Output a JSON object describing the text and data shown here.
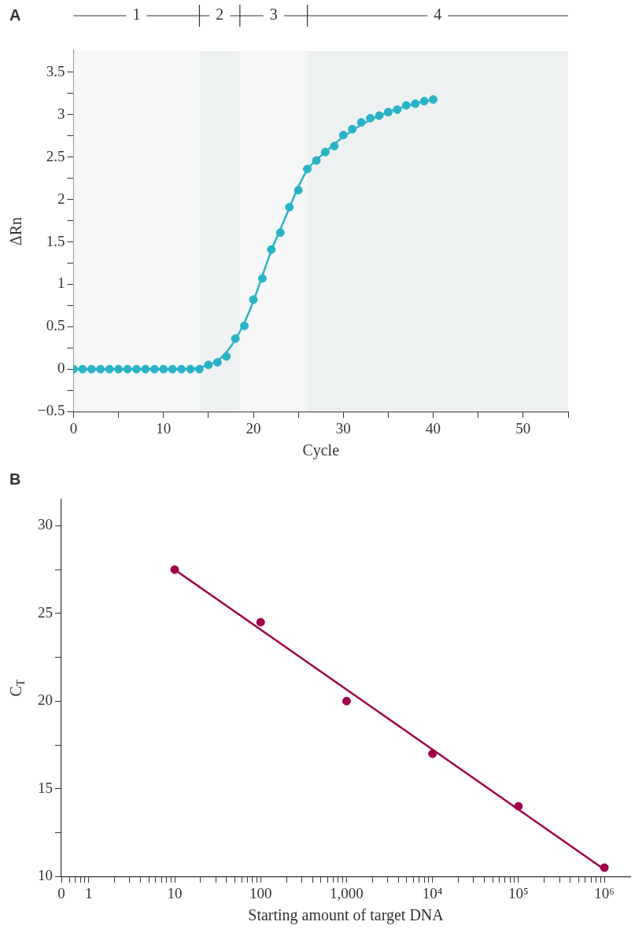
{
  "chart_data": [
    {
      "type": "scatter",
      "title": "A",
      "xlabel": "Cycle",
      "ylabel": "ΔRn",
      "xlim": [
        0,
        55
      ],
      "ylim": [
        -0.5,
        3.75
      ],
      "xticks": [
        0,
        {
          "value": 5,
          "label": null
        },
        10,
        {
          "value": 15,
          "label": null
        },
        20,
        {
          "value": 25,
          "label": null
        },
        30,
        {
          "value": 35,
          "label": null
        },
        40,
        {
          "value": 45,
          "label": null
        },
        50,
        {
          "value": 55,
          "label": null
        }
      ],
      "yticks": [
        {
          "value": -0.5,
          "label": "−0.5"
        },
        {
          "value": -0.25,
          "label": null
        },
        0,
        {
          "value": 0.25,
          "label": null
        },
        0.5,
        {
          "value": 0.75,
          "label": null
        },
        1,
        {
          "value": 1.25,
          "label": null
        },
        1.5,
        {
          "value": 1.75,
          "label": null
        },
        2,
        {
          "value": 2.25,
          "label": null
        },
        2.5,
        {
          "value": 2.75,
          "label": null
        },
        3,
        {
          "value": 3.25,
          "label": null
        },
        3.5
      ],
      "grid": false,
      "legend": false,
      "bands": [
        {
          "axis": "x",
          "from": 0,
          "to": 14,
          "label": "1"
        },
        {
          "axis": "x",
          "from": 14,
          "to": 18.5,
          "label": "2"
        },
        {
          "axis": "x",
          "from": 18.5,
          "to": 26,
          "label": "3"
        },
        {
          "axis": "x",
          "from": 26,
          "to": 55,
          "label": "4"
        }
      ],
      "series": [
        {
          "type": "line",
          "color": "#2ab3c6",
          "line_style": "solid",
          "marker": "none",
          "x": [
            0,
            4,
            8,
            12,
            14,
            16,
            17,
            18,
            19,
            20,
            21,
            22,
            23,
            24,
            25,
            26,
            28,
            30,
            32,
            34,
            36,
            38,
            40
          ],
          "values": [
            0,
            0,
            0,
            0,
            0.02,
            0.1,
            0.2,
            0.35,
            0.55,
            0.8,
            1.1,
            1.4,
            1.65,
            1.9,
            2.15,
            2.35,
            2.56,
            2.74,
            2.88,
            2.99,
            3.07,
            3.13,
            3.18
          ]
        },
        {
          "type": "scatter",
          "color": "#2ab3c6",
          "marker": "circle",
          "x": [
            0,
            1,
            2,
            3,
            4,
            5,
            6,
            7,
            8,
            9,
            10,
            11,
            12,
            13,
            14,
            15,
            16,
            17,
            18,
            19,
            20,
            21,
            22,
            23,
            24,
            25,
            26,
            27,
            28,
            29,
            30,
            31,
            32,
            33,
            34,
            35,
            36,
            37,
            38,
            39,
            40
          ],
          "values": [
            0,
            0,
            0,
            0,
            0,
            0,
            0,
            0,
            0,
            0,
            0,
            0,
            0,
            0,
            0,
            0.05,
            0.08,
            0.15,
            0.36,
            0.51,
            0.82,
            1.07,
            1.41,
            1.61,
            1.91,
            2.11,
            2.36,
            2.46,
            2.56,
            2.63,
            2.76,
            2.83,
            2.91,
            2.96,
            2.99,
            3.03,
            3.06,
            3.11,
            3.13,
            3.16,
            3.18
          ]
        }
      ]
    },
    {
      "type": "scatter",
      "title": "B",
      "xlabel": "Starting amount of target DNA",
      "ylabel": "C$_{T}$",
      "log": "x",
      "xlim": [
        0.48,
        2000000
      ],
      "ylim": [
        10,
        31.5
      ],
      "xticks": [
        {
          "value": 0.48,
          "label": "0"
        },
        {
          "value": 0.6,
          "label": null
        },
        {
          "value": 0.7,
          "label": null
        },
        {
          "value": 0.8,
          "label": null
        },
        {
          "value": 0.9,
          "label": null
        },
        1,
        {
          "value": 2,
          "label": null
        },
        {
          "value": 3,
          "label": null
        },
        {
          "value": 4,
          "label": null
        },
        {
          "value": 5,
          "label": null
        },
        {
          "value": 6,
          "label": null
        },
        {
          "value": 7,
          "label": null
        },
        {
          "value": 8,
          "label": null
        },
        {
          "value": 9,
          "label": null
        },
        10,
        {
          "value": 20,
          "label": null
        },
        {
          "value": 30,
          "label": null
        },
        {
          "value": 40,
          "label": null
        },
        {
          "value": 50,
          "label": null
        },
        {
          "value": 60,
          "label": null
        },
        {
          "value": 70,
          "label": null
        },
        {
          "value": 80,
          "label": null
        },
        {
          "value": 90,
          "label": null
        },
        100,
        {
          "value": 200,
          "label": null
        },
        {
          "value": 300,
          "label": null
        },
        {
          "value": 400,
          "label": null
        },
        {
          "value": 500,
          "label": null
        },
        {
          "value": 600,
          "label": null
        },
        {
          "value": 700,
          "label": null
        },
        {
          "value": 800,
          "label": null
        },
        {
          "value": 900,
          "label": null
        },
        {
          "value": 1000,
          "label": "1,000"
        },
        {
          "value": 2000,
          "label": null
        },
        {
          "value": 3000,
          "label": null
        },
        {
          "value": 4000,
          "label": null
        },
        {
          "value": 5000,
          "label": null
        },
        {
          "value": 6000,
          "label": null
        },
        {
          "value": 7000,
          "label": null
        },
        {
          "value": 8000,
          "label": null
        },
        {
          "value": 9000,
          "label": null
        },
        {
          "value": 10000,
          "label": "10⁴"
        },
        {
          "value": 20000,
          "label": null
        },
        {
          "value": 30000,
          "label": null
        },
        {
          "value": 40000,
          "label": null
        },
        {
          "value": 50000,
          "label": null
        },
        {
          "value": 60000,
          "label": null
        },
        {
          "value": 70000,
          "label": null
        },
        {
          "value": 80000,
          "label": null
        },
        {
          "value": 90000,
          "label": null
        },
        {
          "value": 100000,
          "label": "10⁵"
        },
        {
          "value": 200000,
          "label": null
        },
        {
          "value": 300000,
          "label": null
        },
        {
          "value": 400000,
          "label": null
        },
        {
          "value": 500000,
          "label": null
        },
        {
          "value": 600000,
          "label": null
        },
        {
          "value": 700000,
          "label": null
        },
        {
          "value": 800000,
          "label": null
        },
        {
          "value": 900000,
          "label": null
        },
        {
          "value": 1000000,
          "label": "10⁶"
        }
      ],
      "yticks": [
        10,
        {
          "value": 12.5,
          "label": null
        },
        15,
        {
          "value": 17.5,
          "label": null
        },
        20,
        {
          "value": 22.5,
          "label": null
        },
        25,
        {
          "value": 27.5,
          "label": null
        },
        30
      ],
      "grid": false,
      "legend": false,
      "series": [
        {
          "type": "line",
          "color": "#a0004a",
          "line_style": "solid",
          "marker": "none",
          "x": [
            10,
            1000000
          ],
          "values": [
            27.5,
            10.4
          ]
        },
        {
          "type": "scatter",
          "color": "#a0004a",
          "marker": "circle",
          "x": [
            10,
            100,
            1000,
            10000,
            100000,
            1000000
          ],
          "values": [
            27.5,
            24.5,
            20,
            17,
            14,
            10.5
          ]
        }
      ]
    }
  ]
}
